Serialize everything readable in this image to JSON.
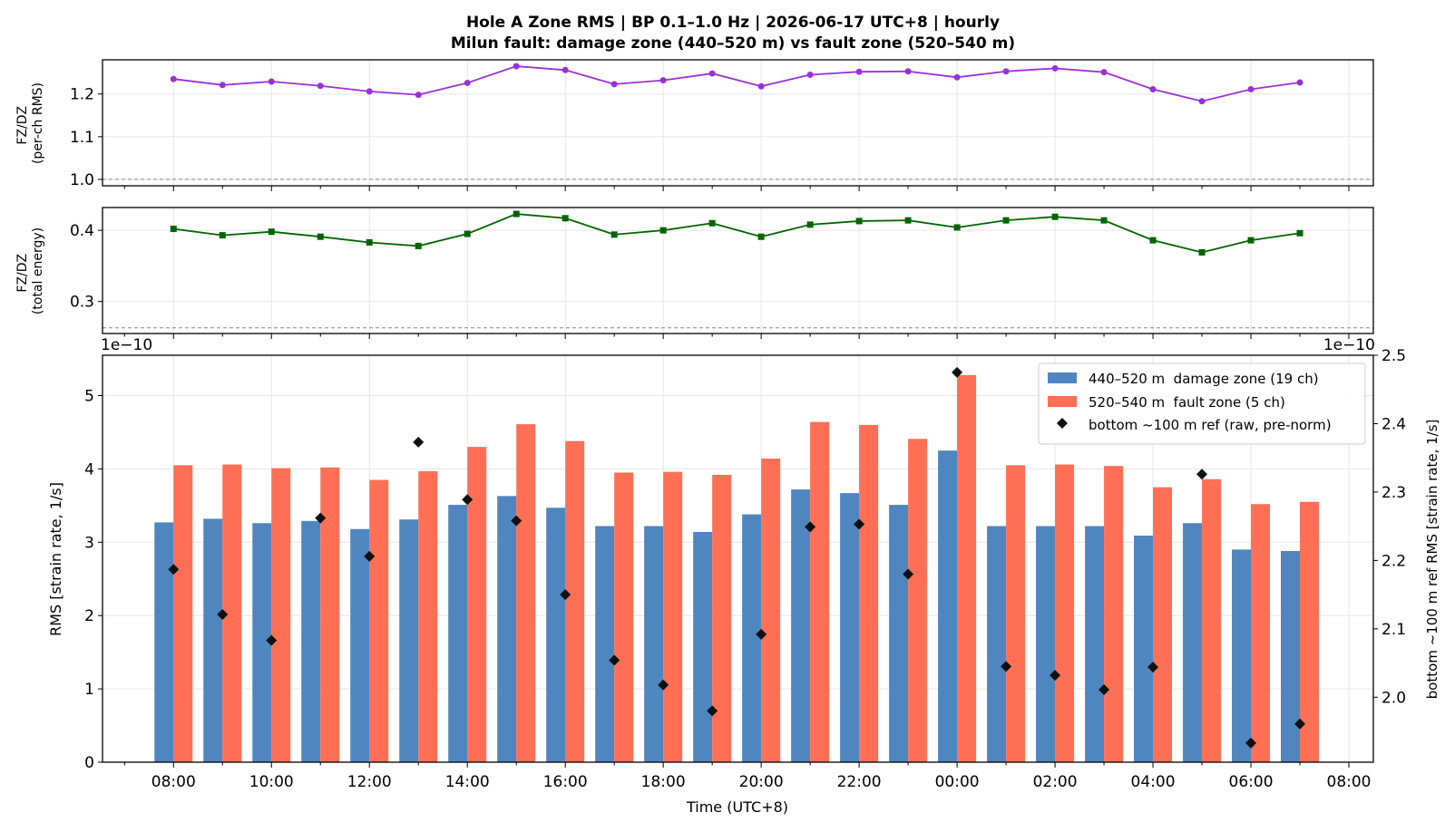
{
  "figure": {
    "title_line1": "Hole A Zone RMS  |  BP 0.1–1.0 Hz  |  2026-06-17 UTC+8  |  hourly",
    "title_line2": "Milun fault: damage zone (440–520 m) vs fault zone (520–540 m)"
  },
  "chart_data": [
    {
      "type": "line",
      "panel": "top",
      "ylabel_line1": "FZ/DZ",
      "ylabel_line2": "(per-ch RMS)",
      "ylim": [
        0.985,
        1.28
      ],
      "yticks": [
        1.0,
        1.1,
        1.2
      ],
      "ytick_labels": [
        "1.0",
        "1.1",
        "1.2"
      ],
      "reference_line": 1.0,
      "grid": true,
      "color": "#9b30d9",
      "marker": "circle",
      "x": [
        "08:00",
        "09:00",
        "10:00",
        "11:00",
        "12:00",
        "13:00",
        "14:00",
        "15:00",
        "16:00",
        "17:00",
        "18:00",
        "19:00",
        "20:00",
        "21:00",
        "22:00",
        "23:00",
        "00:00",
        "01:00",
        "02:00",
        "03:00",
        "04:00",
        "05:00",
        "06:00",
        "07:00"
      ],
      "values": [
        1.235,
        1.221,
        1.229,
        1.219,
        1.206,
        1.198,
        1.226,
        1.265,
        1.256,
        1.223,
        1.232,
        1.248,
        1.218,
        1.245,
        1.252,
        1.253,
        1.239,
        1.253,
        1.26,
        1.251,
        1.211,
        1.183,
        1.211,
        1.227
      ]
    },
    {
      "type": "line",
      "panel": "middle",
      "ylabel_line1": "FZ/DZ",
      "ylabel_line2": "(total energy)",
      "ylim": [
        0.255,
        0.432
      ],
      "yticks": [
        0.3,
        0.4
      ],
      "ytick_labels": [
        "0.3",
        "0.4"
      ],
      "reference_line": 0.263,
      "grid": true,
      "color": "#006400",
      "marker": "square",
      "x": [
        "08:00",
        "09:00",
        "10:00",
        "11:00",
        "12:00",
        "13:00",
        "14:00",
        "15:00",
        "16:00",
        "17:00",
        "18:00",
        "19:00",
        "20:00",
        "21:00",
        "22:00",
        "23:00",
        "00:00",
        "01:00",
        "02:00",
        "03:00",
        "04:00",
        "05:00",
        "06:00",
        "07:00"
      ],
      "values": [
        0.402,
        0.393,
        0.398,
        0.391,
        0.383,
        0.378,
        0.395,
        0.423,
        0.417,
        0.394,
        0.4,
        0.41,
        0.391,
        0.408,
        0.413,
        0.414,
        0.404,
        0.414,
        0.419,
        0.414,
        0.386,
        0.369,
        0.386,
        0.396
      ]
    },
    {
      "type": "bar",
      "panel": "bottom",
      "xlabel": "Time (UTC+8)",
      "ylabel": "RMS  [strain rate, 1/s]",
      "ylabel_right": "bottom ~100 m ref RMS  [strain rate, 1/s]",
      "offset_label_left": "1e−10",
      "offset_label_right": "1e−10",
      "ylim": [
        0,
        5.55
      ],
      "yticks": [
        0,
        1,
        2,
        3,
        4,
        5
      ],
      "ylim_right": [
        1.905,
        2.5
      ],
      "yticks_right": [
        2.0,
        2.1,
        2.2,
        2.3,
        2.4,
        2.5
      ],
      "ytick_labels_right": [
        "2.0",
        "2.1",
        "2.2",
        "2.3",
        "2.4",
        "2.5"
      ],
      "xtick_labels": [
        "08:00",
        "10:00",
        "12:00",
        "14:00",
        "16:00",
        "18:00",
        "20:00",
        "22:00",
        "00:00",
        "02:00",
        "04:00",
        "06:00",
        "08:00"
      ],
      "grid": true,
      "legend_position": "top-right",
      "categories": [
        "08:00",
        "09:00",
        "10:00",
        "11:00",
        "12:00",
        "13:00",
        "14:00",
        "15:00",
        "16:00",
        "17:00",
        "18:00",
        "19:00",
        "20:00",
        "21:00",
        "22:00",
        "23:00",
        "00:00",
        "01:00",
        "02:00",
        "03:00",
        "04:00",
        "05:00",
        "06:00",
        "07:00"
      ],
      "series": [
        {
          "name": "440–520 m  damage zone (19 ch)",
          "color": "#4f86bf",
          "axis": "left",
          "values": [
            3.27,
            3.32,
            3.26,
            3.29,
            3.18,
            3.31,
            3.51,
            3.63,
            3.47,
            3.22,
            3.22,
            3.14,
            3.38,
            3.72,
            3.67,
            3.51,
            4.25,
            3.22,
            3.22,
            3.22,
            3.09,
            3.26,
            2.9,
            2.88
          ]
        },
        {
          "name": "520–540 m  fault zone (5 ch)",
          "color": "#ff6f55",
          "axis": "left",
          "values": [
            4.05,
            4.06,
            4.01,
            4.02,
            3.85,
            3.97,
            4.3,
            4.61,
            4.38,
            3.95,
            3.96,
            3.92,
            4.14,
            4.64,
            4.6,
            4.41,
            5.28,
            4.05,
            4.06,
            4.04,
            3.75,
            3.86,
            3.52,
            3.55
          ]
        },
        {
          "name": "bottom ~100 m ref (raw, pre-norm)",
          "color": "#111111",
          "axis": "right",
          "marker": "diamond",
          "values": [
            2.187,
            2.121,
            2.083,
            2.262,
            2.206,
            2.373,
            2.289,
            2.258,
            2.15,
            2.054,
            2.018,
            1.98,
            2.092,
            2.249,
            2.253,
            2.18,
            2.475,
            2.045,
            2.032,
            2.011,
            2.044,
            2.326,
            1.933,
            1.961
          ]
        }
      ]
    }
  ]
}
